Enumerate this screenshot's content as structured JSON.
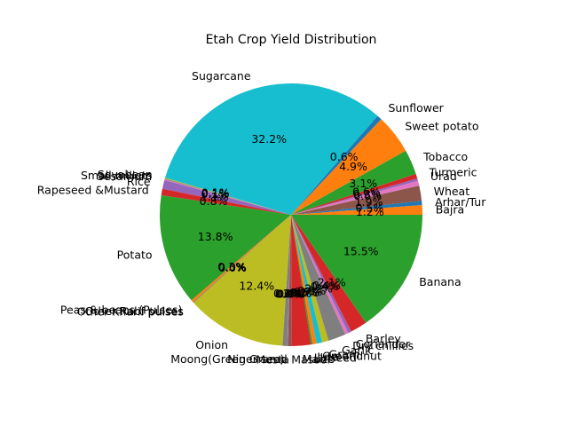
{
  "chart_data": {
    "type": "pie",
    "title": "Etah Crop Yield Distribution",
    "start_angle_deg": 0,
    "direction": "counterclockwise",
    "autopct_format": "%1.1f%%",
    "slices": [
      {
        "label": "Bajra",
        "value": 1.2,
        "pct_label": "1.2%",
        "color": "#ff7f0e"
      },
      {
        "label": "Arhar/Tur",
        "value": 0.5,
        "pct_label": "0.5%",
        "color": "#1f77b4"
      },
      {
        "label": "Wheat",
        "value": 1.9,
        "pct_label": "1.9%",
        "color": "#8c564b"
      },
      {
        "label": "",
        "value": 0.6,
        "pct_label": "0.6%",
        "color": "#e377c2"
      },
      {
        "label": "Urad",
        "value": 0.3,
        "pct_label": "0.3%",
        "color": "#9467bd"
      },
      {
        "label": "Turmeric",
        "value": 0.6,
        "pct_label": "0.6%",
        "color": "#d62728"
      },
      {
        "label": "Tobacco",
        "value": 3.1,
        "pct_label": "3.1%",
        "color": "#2ca02c"
      },
      {
        "label": "Sweet potato",
        "value": 4.9,
        "pct_label": "4.9%",
        "color": "#ff7f0e"
      },
      {
        "label": "Sunflower",
        "value": 0.6,
        "pct_label": "0.6%",
        "color": "#1f77b4"
      },
      {
        "label": "Sugarcane",
        "value": 32.2,
        "pct_label": "32.2%",
        "color": "#17becf"
      },
      {
        "label": "Soyabean",
        "value": 0.1,
        "pct_label": "0.1%",
        "color": "#bcbd22"
      },
      {
        "label": "Small millets",
        "value": 0.1,
        "pct_label": "0.1%",
        "color": "#7f7f7f"
      },
      {
        "label": "Sesamum",
        "value": 0.1,
        "pct_label": "0.1%",
        "color": "#e377c2"
      },
      {
        "label": "Rice",
        "value": 1.1,
        "pct_label": "1.1%",
        "color": "#9467bd"
      },
      {
        "label": "Rapeseed &Mustard",
        "value": 0.8,
        "pct_label": "0.8%",
        "color": "#d62728"
      },
      {
        "label": "Potato",
        "value": 13.8,
        "pct_label": "13.8%",
        "color": "#2ca02c"
      },
      {
        "label": "Peas & beans (Pulses)",
        "value": 0.3,
        "pct_label": "0.3%",
        "color": "#ff7f0e"
      },
      {
        "label": "Other Rabi pulses",
        "value": 0.05,
        "pct_label": "0.0%",
        "color": "#1f77b4"
      },
      {
        "label": "Other Kharif pulses",
        "value": 0.05,
        "pct_label": "0.0%",
        "color": "#8c564b"
      },
      {
        "label": "Onion",
        "value": 12.4,
        "pct_label": "12.4%",
        "color": "#bcbd22"
      },
      {
        "label": "Moong(Green Gram)",
        "value": 0.6,
        "pct_label": "0.6%",
        "color": "#7f7f7f"
      },
      {
        "label": "Niger seed",
        "value": 0.05,
        "pct_label": "0.0%",
        "color": "#e377c2"
      },
      {
        "label": "Mesta",
        "value": 0.4,
        "pct_label": "0.4%",
        "color": "#8c564b"
      },
      {
        "label": "Masoor",
        "value": 0.05,
        "pct_label": "0.0%",
        "color": "#9467bd"
      },
      {
        "label": "Maize",
        "value": 2.4,
        "pct_label": "2.4%",
        "color": "#d62728"
      },
      {
        "label": "Linseed",
        "value": 0.2,
        "pct_label": "0.2%",
        "color": "#2ca02c"
      },
      {
        "label": "Jute",
        "value": 0.5,
        "pct_label": "0.5%",
        "color": "#ff7f0e"
      },
      {
        "label": "Groundnut",
        "value": 0.7,
        "pct_label": "0.7%",
        "color": "#17becf"
      },
      {
        "label": "Gram",
        "value": 0.8,
        "pct_label": "0.8%",
        "color": "#bcbd22"
      },
      {
        "label": "Garlic",
        "value": 2.2,
        "pct_label": "2.2%",
        "color": "#7f7f7f"
      },
      {
        "label": "Dry chillies",
        "value": 0.4,
        "pct_label": "0.4%",
        "color": "#e377c2"
      },
      {
        "label": "Coriander",
        "value": 0.4,
        "pct_label": "0.4%",
        "color": "#9467bd"
      },
      {
        "label": "Barley",
        "value": 2.1,
        "pct_label": "2.1%",
        "color": "#d62728"
      },
      {
        "label": "Banana",
        "value": 15.5,
        "pct_label": "15.5%",
        "color": "#2ca02c"
      }
    ]
  }
}
